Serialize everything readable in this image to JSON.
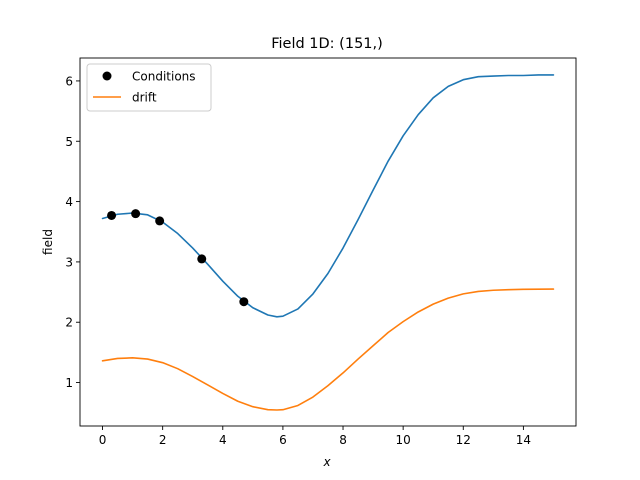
{
  "chart_data": {
    "type": "line",
    "title": "Field 1D: (151,)",
    "xlabel": "x",
    "ylabel": "field",
    "xlim": [
      -0.75,
      15.75
    ],
    "ylim": [
      0.28,
      6.38
    ],
    "xticks": [
      0,
      2,
      4,
      6,
      8,
      10,
      12,
      14
    ],
    "yticks": [
      1,
      2,
      3,
      4,
      5,
      6
    ],
    "grid": false,
    "legend": {
      "position": "top-left",
      "entries": [
        {
          "label": "Conditions",
          "marker": "circle",
          "color": "#000000"
        },
        {
          "label": "drift",
          "marker": "line",
          "color": "#ff7f0e"
        }
      ]
    },
    "series": [
      {
        "kind": "line",
        "color": "#1f77b4",
        "x": [
          0,
          0.5,
          1,
          1.5,
          2,
          2.5,
          3,
          3.5,
          4,
          4.5,
          5,
          5.5,
          5.8,
          6,
          6.5,
          7,
          7.5,
          8,
          8.5,
          9,
          9.5,
          10,
          10.5,
          11,
          11.5,
          12,
          12.5,
          13,
          13.5,
          14,
          14.5,
          15
        ],
        "y": [
          3.72,
          3.79,
          3.81,
          3.78,
          3.66,
          3.47,
          3.23,
          2.96,
          2.68,
          2.43,
          2.24,
          2.12,
          2.09,
          2.1,
          2.22,
          2.47,
          2.81,
          3.23,
          3.7,
          4.19,
          4.67,
          5.09,
          5.44,
          5.72,
          5.91,
          6.02,
          6.07,
          6.08,
          6.09,
          6.09,
          6.1,
          6.1
        ]
      },
      {
        "name": "Conditions",
        "kind": "scatter",
        "color": "#000000",
        "x": [
          0.3,
          1.1,
          1.9,
          3.3,
          4.7
        ],
        "y": [
          3.77,
          3.8,
          3.68,
          3.05,
          2.34
        ]
      },
      {
        "name": "drift",
        "kind": "line",
        "color": "#ff7f0e",
        "x": [
          0,
          0.5,
          1,
          1.5,
          2,
          2.5,
          3,
          3.5,
          4,
          4.5,
          5,
          5.5,
          5.8,
          6,
          6.5,
          7,
          7.5,
          8,
          8.5,
          9,
          9.5,
          10,
          10.5,
          11,
          11.5,
          12,
          12.5,
          13,
          13.5,
          14,
          14.5,
          15
        ],
        "y": [
          1.36,
          1.4,
          1.41,
          1.39,
          1.33,
          1.23,
          1.1,
          0.96,
          0.82,
          0.69,
          0.6,
          0.55,
          0.545,
          0.55,
          0.62,
          0.76,
          0.95,
          1.16,
          1.39,
          1.61,
          1.83,
          2.01,
          2.17,
          2.3,
          2.4,
          2.47,
          2.51,
          2.53,
          2.54,
          2.545,
          2.548,
          2.55
        ]
      }
    ]
  }
}
